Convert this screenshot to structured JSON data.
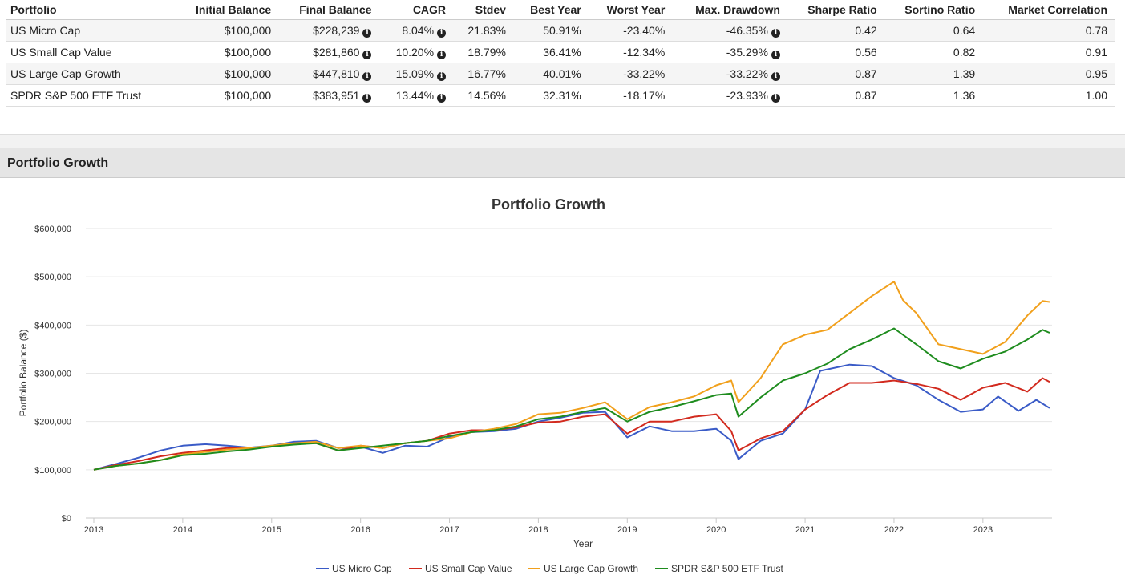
{
  "table": {
    "headers": [
      "Portfolio",
      "Initial Balance",
      "Final Balance",
      "CAGR",
      "Stdev",
      "Best Year",
      "Worst Year",
      "Max. Drawdown",
      "Sharpe Ratio",
      "Sortino Ratio",
      "Market Correlation"
    ],
    "rows": [
      [
        "US Micro Cap",
        "$100,000",
        "$228,239",
        "8.04%",
        "21.83%",
        "50.91%",
        "-23.40%",
        "-46.35%",
        "0.42",
        "0.64",
        "0.78"
      ],
      [
        "US Small Cap Value",
        "$100,000",
        "$281,860",
        "10.20%",
        "18.79%",
        "36.41%",
        "-12.34%",
        "-35.29%",
        "0.56",
        "0.82",
        "0.91"
      ],
      [
        "US Large Cap Growth",
        "$100,000",
        "$447,810",
        "15.09%",
        "16.77%",
        "40.01%",
        "-33.22%",
        "-33.22%",
        "0.87",
        "1.39",
        "0.95"
      ],
      [
        "SPDR S&P 500 ETF Trust",
        "$100,000",
        "$383,951",
        "13.44%",
        "14.56%",
        "32.31%",
        "-18.17%",
        "-23.93%",
        "0.87",
        "1.36",
        "1.00"
      ]
    ],
    "info_columns": [
      2,
      3,
      7
    ],
    "info_icon": "info-circle-icon"
  },
  "section": {
    "title": "Portfolio Growth"
  },
  "chart_data": {
    "type": "line",
    "title": "Portfolio Growth",
    "xlabel": "Year",
    "ylabel": "Portfolio Balance ($)",
    "x_ticks": [
      "2013",
      "2014",
      "2015",
      "2016",
      "2017",
      "2018",
      "2019",
      "2020",
      "2021",
      "2022",
      "2023"
    ],
    "y_ticks": [
      "$0",
      "$100,000",
      "$200,000",
      "$300,000",
      "$400,000",
      "$500,000",
      "$600,000"
    ],
    "ylim": [
      0,
      600000
    ],
    "xlim": [
      2013,
      2023.75
    ],
    "grid": "horizontal",
    "legend": "bottom",
    "series": [
      {
        "name": "US Micro Cap",
        "color": "#3a5bc7",
        "points": [
          [
            2013.0,
            100000
          ],
          [
            2013.25,
            112000
          ],
          [
            2013.5,
            125000
          ],
          [
            2013.75,
            140000
          ],
          [
            2014.0,
            150000
          ],
          [
            2014.25,
            153000
          ],
          [
            2014.5,
            150000
          ],
          [
            2014.75,
            146000
          ],
          [
            2015.0,
            150000
          ],
          [
            2015.25,
            158000
          ],
          [
            2015.5,
            160000
          ],
          [
            2015.75,
            145000
          ],
          [
            2016.0,
            148000
          ],
          [
            2016.25,
            135000
          ],
          [
            2016.5,
            150000
          ],
          [
            2016.75,
            148000
          ],
          [
            2017.0,
            168000
          ],
          [
            2017.25,
            178000
          ],
          [
            2017.5,
            180000
          ],
          [
            2017.75,
            185000
          ],
          [
            2018.0,
            200000
          ],
          [
            2018.25,
            208000
          ],
          [
            2018.5,
            218000
          ],
          [
            2018.75,
            220000
          ],
          [
            2019.0,
            167000
          ],
          [
            2019.25,
            190000
          ],
          [
            2019.5,
            180000
          ],
          [
            2019.75,
            180000
          ],
          [
            2020.0,
            185000
          ],
          [
            2020.17,
            160000
          ],
          [
            2020.25,
            122000
          ],
          [
            2020.5,
            160000
          ],
          [
            2020.75,
            175000
          ],
          [
            2021.0,
            225000
          ],
          [
            2021.17,
            305000
          ],
          [
            2021.5,
            318000
          ],
          [
            2021.75,
            315000
          ],
          [
            2022.0,
            290000
          ],
          [
            2022.25,
            275000
          ],
          [
            2022.5,
            245000
          ],
          [
            2022.75,
            220000
          ],
          [
            2023.0,
            225000
          ],
          [
            2023.17,
            252000
          ],
          [
            2023.4,
            222000
          ],
          [
            2023.6,
            245000
          ],
          [
            2023.75,
            228000
          ]
        ]
      },
      {
        "name": "US Small Cap Value",
        "color": "#d22a1e",
        "points": [
          [
            2013.0,
            100000
          ],
          [
            2013.25,
            110000
          ],
          [
            2013.5,
            118000
          ],
          [
            2013.75,
            128000
          ],
          [
            2014.0,
            135000
          ],
          [
            2014.25,
            140000
          ],
          [
            2014.5,
            145000
          ],
          [
            2014.75,
            145000
          ],
          [
            2015.0,
            148000
          ],
          [
            2015.25,
            155000
          ],
          [
            2015.5,
            155000
          ],
          [
            2015.75,
            140000
          ],
          [
            2016.0,
            150000
          ],
          [
            2016.25,
            145000
          ],
          [
            2016.5,
            155000
          ],
          [
            2016.75,
            160000
          ],
          [
            2017.0,
            175000
          ],
          [
            2017.25,
            182000
          ],
          [
            2017.5,
            182000
          ],
          [
            2017.75,
            188000
          ],
          [
            2018.0,
            198000
          ],
          [
            2018.25,
            200000
          ],
          [
            2018.5,
            210000
          ],
          [
            2018.75,
            215000
          ],
          [
            2019.0,
            175000
          ],
          [
            2019.25,
            200000
          ],
          [
            2019.5,
            200000
          ],
          [
            2019.75,
            210000
          ],
          [
            2020.0,
            215000
          ],
          [
            2020.17,
            180000
          ],
          [
            2020.25,
            140000
          ],
          [
            2020.5,
            165000
          ],
          [
            2020.75,
            180000
          ],
          [
            2021.0,
            225000
          ],
          [
            2021.25,
            255000
          ],
          [
            2021.5,
            280000
          ],
          [
            2021.75,
            280000
          ],
          [
            2022.0,
            285000
          ],
          [
            2022.25,
            278000
          ],
          [
            2022.5,
            268000
          ],
          [
            2022.75,
            245000
          ],
          [
            2023.0,
            270000
          ],
          [
            2023.25,
            280000
          ],
          [
            2023.5,
            262000
          ],
          [
            2023.67,
            290000
          ],
          [
            2023.75,
            282000
          ]
        ]
      },
      {
        "name": "US Large Cap Growth",
        "color": "#f1a01c",
        "points": [
          [
            2013.0,
            100000
          ],
          [
            2013.25,
            108000
          ],
          [
            2013.5,
            113000
          ],
          [
            2013.75,
            120000
          ],
          [
            2014.0,
            132000
          ],
          [
            2014.25,
            137000
          ],
          [
            2014.5,
            142000
          ],
          [
            2014.75,
            145000
          ],
          [
            2015.0,
            150000
          ],
          [
            2015.25,
            155000
          ],
          [
            2015.5,
            158000
          ],
          [
            2015.75,
            145000
          ],
          [
            2016.0,
            150000
          ],
          [
            2016.25,
            145000
          ],
          [
            2016.5,
            155000
          ],
          [
            2016.75,
            160000
          ],
          [
            2017.0,
            165000
          ],
          [
            2017.25,
            178000
          ],
          [
            2017.5,
            185000
          ],
          [
            2017.75,
            195000
          ],
          [
            2018.0,
            215000
          ],
          [
            2018.25,
            218000
          ],
          [
            2018.5,
            228000
          ],
          [
            2018.75,
            240000
          ],
          [
            2019.0,
            205000
          ],
          [
            2019.25,
            230000
          ],
          [
            2019.5,
            240000
          ],
          [
            2019.75,
            252000
          ],
          [
            2020.0,
            275000
          ],
          [
            2020.17,
            285000
          ],
          [
            2020.25,
            240000
          ],
          [
            2020.5,
            290000
          ],
          [
            2020.75,
            360000
          ],
          [
            2021.0,
            380000
          ],
          [
            2021.25,
            390000
          ],
          [
            2021.5,
            425000
          ],
          [
            2021.75,
            460000
          ],
          [
            2022.0,
            490000
          ],
          [
            2022.1,
            452000
          ],
          [
            2022.25,
            425000
          ],
          [
            2022.5,
            360000
          ],
          [
            2022.75,
            350000
          ],
          [
            2023.0,
            340000
          ],
          [
            2023.25,
            365000
          ],
          [
            2023.5,
            420000
          ],
          [
            2023.67,
            450000
          ],
          [
            2023.75,
            448000
          ]
        ]
      },
      {
        "name": "SPDR S&P 500 ETF Trust",
        "color": "#1e8c1e",
        "points": [
          [
            2013.0,
            100000
          ],
          [
            2013.25,
            108000
          ],
          [
            2013.5,
            113000
          ],
          [
            2013.75,
            120000
          ],
          [
            2014.0,
            130000
          ],
          [
            2014.25,
            133000
          ],
          [
            2014.5,
            138000
          ],
          [
            2014.75,
            142000
          ],
          [
            2015.0,
            148000
          ],
          [
            2015.25,
            152000
          ],
          [
            2015.5,
            155000
          ],
          [
            2015.75,
            140000
          ],
          [
            2016.0,
            145000
          ],
          [
            2016.25,
            150000
          ],
          [
            2016.5,
            155000
          ],
          [
            2016.75,
            160000
          ],
          [
            2017.0,
            170000
          ],
          [
            2017.25,
            178000
          ],
          [
            2017.5,
            182000
          ],
          [
            2017.75,
            190000
          ],
          [
            2018.0,
            205000
          ],
          [
            2018.25,
            210000
          ],
          [
            2018.5,
            220000
          ],
          [
            2018.75,
            228000
          ],
          [
            2019.0,
            200000
          ],
          [
            2019.25,
            220000
          ],
          [
            2019.5,
            230000
          ],
          [
            2019.75,
            242000
          ],
          [
            2020.0,
            255000
          ],
          [
            2020.17,
            258000
          ],
          [
            2020.25,
            210000
          ],
          [
            2020.5,
            250000
          ],
          [
            2020.75,
            285000
          ],
          [
            2021.0,
            300000
          ],
          [
            2021.25,
            320000
          ],
          [
            2021.5,
            350000
          ],
          [
            2021.75,
            370000
          ],
          [
            2022.0,
            393000
          ],
          [
            2022.25,
            360000
          ],
          [
            2022.5,
            325000
          ],
          [
            2022.75,
            310000
          ],
          [
            2023.0,
            330000
          ],
          [
            2023.25,
            345000
          ],
          [
            2023.5,
            370000
          ],
          [
            2023.67,
            390000
          ],
          [
            2023.75,
            384000
          ]
        ]
      }
    ]
  }
}
